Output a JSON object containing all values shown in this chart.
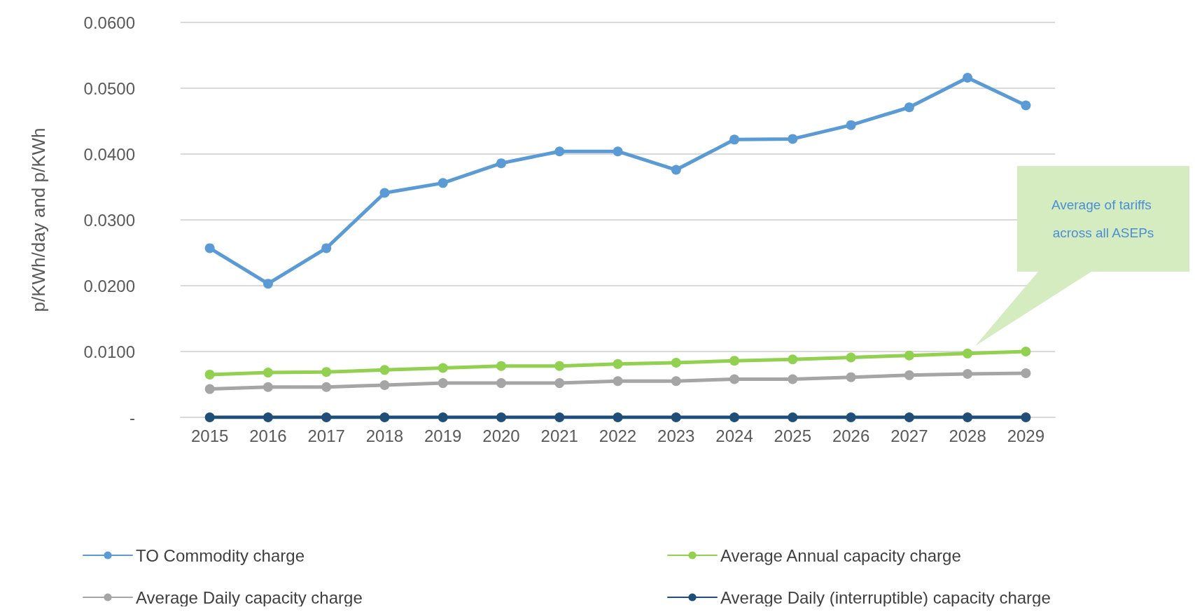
{
  "chart_data": {
    "type": "line",
    "ylabel": "p/KWh/day and p/KWh",
    "categories": [
      "2015",
      "2016",
      "2017",
      "2018",
      "2019",
      "2020",
      "2021",
      "2022",
      "2023",
      "2024",
      "2025",
      "2026",
      "2027",
      "2028",
      "2029"
    ],
    "series": [
      {
        "name": "TO Commodity charge",
        "color": "#5b9bd5",
        "values": [
          0.0257,
          0.0203,
          0.0257,
          0.0341,
          0.0356,
          0.0386,
          0.0404,
          0.0404,
          0.0376,
          0.0422,
          0.0423,
          0.0444,
          0.0471,
          0.0516,
          0.0474
        ]
      },
      {
        "name": "Average Annual capacity charge",
        "color": "#92d050",
        "values": [
          0.0065,
          0.0068,
          0.0069,
          0.0072,
          0.0075,
          0.0078,
          0.0078,
          0.0081,
          0.0083,
          0.0086,
          0.0088,
          0.0091,
          0.0094,
          0.0097,
          0.01
        ]
      },
      {
        "name": "Average Daily capacity charge",
        "color": "#a5a5a5",
        "values": [
          0.0043,
          0.0046,
          0.0046,
          0.0049,
          0.0052,
          0.0052,
          0.0052,
          0.0055,
          0.0055,
          0.0058,
          0.0058,
          0.0061,
          0.0064,
          0.0066,
          0.0067
        ]
      },
      {
        "name": "Average Daily (interruptible) capacity charge",
        "color": "#1f4e79",
        "values": [
          0,
          0,
          0,
          0,
          0,
          0,
          0,
          0,
          0,
          0,
          0,
          0,
          0,
          0,
          0
        ]
      }
    ],
    "ylim": [
      0,
      0.06
    ],
    "yticks": [
      {
        "value": 0,
        "label": "-"
      },
      {
        "value": 0.01,
        "label": "0.0100"
      },
      {
        "value": 0.02,
        "label": "0.0200"
      },
      {
        "value": 0.03,
        "label": "0.0300"
      },
      {
        "value": 0.04,
        "label": "0.0400"
      },
      {
        "value": 0.05,
        "label": "0.0500"
      },
      {
        "value": 0.06,
        "label": "0.0600"
      }
    ],
    "grid": "y",
    "legend": "bottom",
    "marker": "circle",
    "line_style": "solid",
    "annotations": [
      "Average of tariffs across all ASEPs"
    ]
  }
}
